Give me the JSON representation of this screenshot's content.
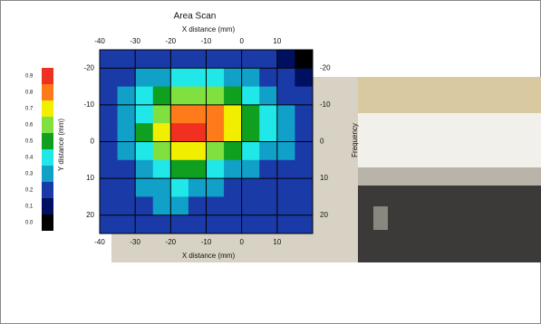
{
  "chart_data": {
    "type": "heatmap",
    "title": "Area Scan",
    "xlabel": "X distance (mm)",
    "ylabel": "Y distance (mm)",
    "side_label": "Frequency",
    "x": [
      -37.5,
      -32.5,
      -27.5,
      -22.5,
      -17.5,
      -12.5,
      -7.5,
      -2.5,
      2.5,
      7.5,
      12.5,
      17.5
    ],
    "y": [
      -22.5,
      -17.5,
      -12.5,
      -7.5,
      -2.5,
      2.5,
      7.5,
      12.5,
      17.5,
      22.5
    ],
    "z": [
      [
        0.2,
        0.2,
        0.2,
        0.2,
        0.2,
        0.2,
        0.2,
        0.2,
        0.2,
        0.2,
        0.1,
        0.0
      ],
      [
        0.2,
        0.2,
        0.3,
        0.3,
        0.4,
        0.4,
        0.4,
        0.3,
        0.3,
        0.2,
        0.2,
        0.1
      ],
      [
        0.2,
        0.3,
        0.4,
        0.5,
        0.6,
        0.6,
        0.6,
        0.5,
        0.4,
        0.3,
        0.2,
        0.2
      ],
      [
        0.2,
        0.3,
        0.4,
        0.6,
        0.8,
        0.8,
        0.8,
        0.7,
        0.5,
        0.4,
        0.3,
        0.2
      ],
      [
        0.2,
        0.3,
        0.5,
        0.7,
        0.9,
        0.9,
        0.8,
        0.7,
        0.5,
        0.4,
        0.3,
        0.2
      ],
      [
        0.2,
        0.3,
        0.4,
        0.6,
        0.7,
        0.7,
        0.6,
        0.5,
        0.4,
        0.3,
        0.3,
        0.2
      ],
      [
        0.2,
        0.2,
        0.3,
        0.4,
        0.5,
        0.5,
        0.4,
        0.3,
        0.3,
        0.2,
        0.2,
        0.2
      ],
      [
        0.2,
        0.2,
        0.3,
        0.3,
        0.4,
        0.3,
        0.3,
        0.2,
        0.2,
        0.2,
        0.2,
        0.2
      ],
      [
        0.2,
        0.2,
        0.2,
        0.3,
        0.3,
        0.2,
        0.2,
        0.2,
        0.2,
        0.2,
        0.2,
        0.2
      ],
      [
        0.2,
        0.2,
        0.2,
        0.2,
        0.2,
        0.2,
        0.2,
        0.2,
        0.2,
        0.2,
        0.2,
        0.2
      ]
    ],
    "xlim": [
      -40,
      20
    ],
    "ylim": [
      -25,
      25
    ],
    "xticks": [
      -40,
      -30,
      -20,
      -10,
      0,
      10
    ],
    "yticks": [
      -20,
      -10,
      0,
      10,
      20
    ],
    "grid": true,
    "levels": [
      0.9,
      0.8,
      0.7,
      0.6,
      0.5,
      0.4,
      0.3,
      0.2,
      0.1,
      {
        "value": 0,
        "label": "0.0"
      }
    ],
    "colors": [
      "#f03020",
      "#ff7a1a",
      "#f2ee00",
      "#80e040",
      "#10a020",
      "#20e8e8",
      "#10a0c8",
      "#1a3aa8",
      "#001060",
      "#000000"
    ]
  }
}
